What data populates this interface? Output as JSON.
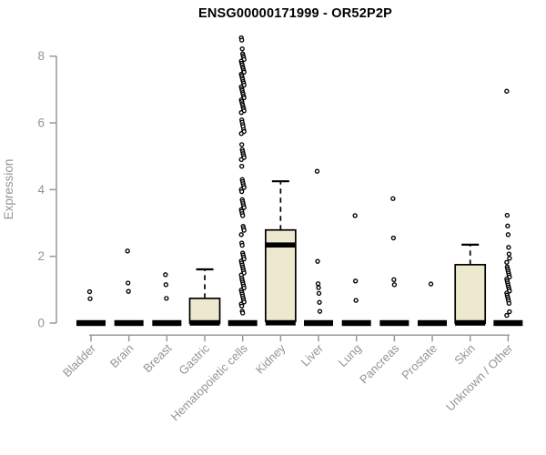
{
  "page": {
    "title": "ENSG00000171999 - OR52P2P"
  },
  "chart_data": {
    "type": "boxplot",
    "title": "ENSG00000171999 - OR52P2P",
    "ylabel": "Expression",
    "ylim": [
      0,
      8.6
    ],
    "yticks": [
      0,
      2,
      4,
      6,
      8
    ],
    "grid": false,
    "legend": "none",
    "categories": [
      "Bladder",
      "Brain",
      "Breast",
      "Gastric",
      "Hematopoietic cells",
      "Kidney",
      "Liver",
      "Lung",
      "Pancreas",
      "Prostate",
      "Skin",
      "Unknown / Other"
    ],
    "boxes": [
      {
        "label": "Bladder",
        "type": "flat",
        "median": 0,
        "outliers": [
          0.94,
          0.73
        ]
      },
      {
        "label": "Brain",
        "type": "flat",
        "median": 0,
        "outliers": [
          2.16,
          1.2,
          0.95
        ]
      },
      {
        "label": "Breast",
        "type": "flat",
        "median": 0,
        "outliers": [
          1.45,
          1.15,
          0.74
        ]
      },
      {
        "label": "Gastric",
        "type": "box",
        "q1": 0,
        "median": 0,
        "q3": 0.74,
        "whisker_high": 1.61,
        "outliers": []
      },
      {
        "label": "Hematopoietic cells",
        "type": "flat",
        "median": 0,
        "outliers": [
          8.55,
          8.48,
          8.22,
          8.07,
          8.01,
          7.96,
          7.9,
          7.85,
          7.79,
          7.74,
          7.68,
          7.63,
          7.57,
          7.52,
          7.46,
          7.41,
          7.35,
          7.3,
          7.24,
          7.19,
          7.13,
          7.08,
          7.02,
          6.97,
          6.91,
          6.86,
          6.8,
          6.75,
          6.69,
          6.64,
          6.58,
          6.53,
          6.47,
          6.42,
          6.36,
          6.31,
          6.09,
          6.02,
          5.95,
          5.89,
          5.8,
          5.74,
          5.68,
          5.35,
          5.2,
          5.14,
          5.08,
          5.02,
          4.96,
          4.9,
          4.7,
          4.3,
          4.24,
          4.18,
          4.12,
          4.06,
          4.0,
          3.94,
          3.7,
          3.64,
          3.58,
          3.52,
          3.46,
          3.4,
          3.35,
          3.28,
          3.22,
          2.9,
          2.84,
          2.78,
          2.65,
          2.4,
          2.33,
          2.1,
          2.04,
          1.98,
          1.92,
          1.86,
          1.8,
          1.74,
          1.68,
          1.62,
          1.56,
          1.5,
          1.44,
          1.35,
          1.29,
          1.23,
          1.17,
          1.11,
          1.05,
          0.99,
          0.93,
          0.87,
          0.81,
          0.75,
          0.69,
          0.63,
          0.57,
          0.51,
          0.35,
          0.3
        ]
      },
      {
        "label": "Kidney",
        "type": "box",
        "q1": 0.05,
        "median": 2.34,
        "q3": 2.79,
        "whisker_high": 4.25,
        "outliers": []
      },
      {
        "label": "Liver",
        "type": "flat",
        "median": 0,
        "outliers": [
          4.55,
          1.85,
          1.18,
          1.06,
          0.89,
          0.62,
          0.35
        ]
      },
      {
        "label": "Lung",
        "type": "flat",
        "median": 0,
        "outliers": [
          3.22,
          1.26,
          0.68
        ]
      },
      {
        "label": "Pancreas",
        "type": "flat",
        "median": 0,
        "outliers": [
          3.73,
          2.55,
          1.3,
          1.15
        ]
      },
      {
        "label": "Prostate",
        "type": "flat",
        "median": 0,
        "outliers": [
          1.17
        ]
      },
      {
        "label": "Skin",
        "type": "box",
        "q1": 0,
        "median": 0,
        "q3": 1.75,
        "whisker_high": 2.35,
        "outliers": []
      },
      {
        "label": "Unknown / Other",
        "type": "flat",
        "median": 0,
        "outliers": [
          6.95,
          3.23,
          2.91,
          2.65,
          2.27,
          2.07,
          1.94,
          1.82,
          1.68,
          1.62,
          1.56,
          1.5,
          1.44,
          1.38,
          1.32,
          1.26,
          1.2,
          1.14,
          1.08,
          1.02,
          0.96,
          0.9,
          0.84,
          0.78,
          0.72,
          0.66,
          0.59,
          0.34,
          0.23
        ]
      }
    ],
    "colors": {
      "box_fill": "#ece9cf",
      "box_border": "#000000",
      "median": "#000000",
      "axis_line": "#999999",
      "axis_text": "#949494",
      "title": "#000000",
      "outlier_stroke": "#000000",
      "outlier_fill": "#ffffff",
      "background": "#ffffff"
    }
  }
}
